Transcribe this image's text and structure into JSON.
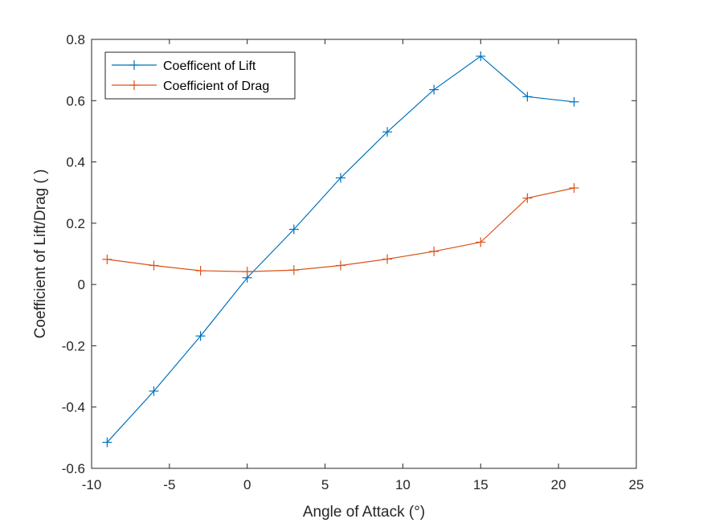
{
  "chart_data": {
    "type": "line",
    "title": "",
    "xlabel": "Angle of Attack (°)",
    "ylabel": "Coefficient of Lift/Drag ( )",
    "xlim": [
      -10,
      25
    ],
    "ylim": [
      -0.6,
      0.8
    ],
    "xticks": [
      -10,
      -5,
      0,
      5,
      10,
      15,
      20,
      25
    ],
    "yticks": [
      -0.6,
      -0.4,
      -0.2,
      0,
      0.2,
      0.4,
      0.6,
      0.8
    ],
    "xtick_labels": [
      "-10",
      "-5",
      "0",
      "5",
      "10",
      "15",
      "20",
      "25"
    ],
    "ytick_labels": [
      "-0.6",
      "-0.4",
      "-0.2",
      "0",
      "0.2",
      "0.4",
      "0.6",
      "0.8"
    ],
    "grid": false,
    "legend_position": "top-left",
    "marker": "+",
    "x": [
      -9,
      -6,
      -3,
      0,
      3,
      6,
      9,
      12,
      15,
      18,
      21
    ],
    "series": [
      {
        "name": "Coefficent of Lift",
        "color": "#0072BD",
        "values": [
          -0.515,
          -0.348,
          -0.168,
          0.022,
          0.18,
          0.348,
          0.498,
          0.636,
          0.745,
          0.613,
          0.596
        ]
      },
      {
        "name": "Coefficient of Drag",
        "color": "#D95319",
        "values": [
          0.082,
          0.062,
          0.045,
          0.042,
          0.047,
          0.062,
          0.083,
          0.108,
          0.138,
          0.282,
          0.315
        ]
      }
    ]
  }
}
